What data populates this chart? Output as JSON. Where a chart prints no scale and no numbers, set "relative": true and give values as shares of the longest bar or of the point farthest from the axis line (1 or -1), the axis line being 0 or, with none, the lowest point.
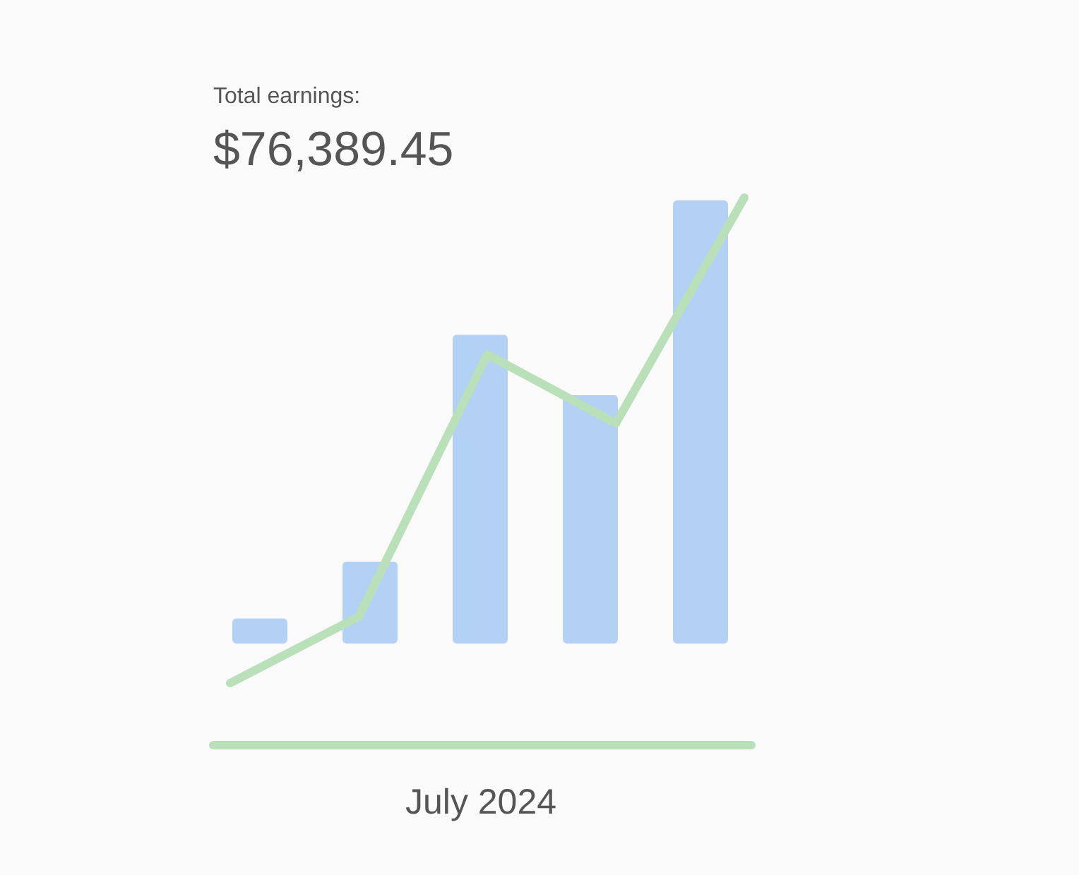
{
  "chart_data": [
    {
      "type": "bar",
      "title": "Total earnings:",
      "subtitle": "$76,389.45",
      "xlabel": "July 2024",
      "relative": true,
      "tick_labels": false,
      "categories": [
        null,
        null,
        null,
        null,
        null
      ],
      "color": "#b3d1f5",
      "values": [
        0.057,
        0.185,
        0.697,
        0.561,
        1
      ]
    },
    {
      "type": "line",
      "relative": true,
      "tick_labels": false,
      "categories": [
        null,
        null,
        null,
        null,
        null
      ],
      "color": "#b9e0b9",
      "values": [
        0,
        0.137,
        0.677,
        0.535,
        1
      ]
    }
  ]
}
